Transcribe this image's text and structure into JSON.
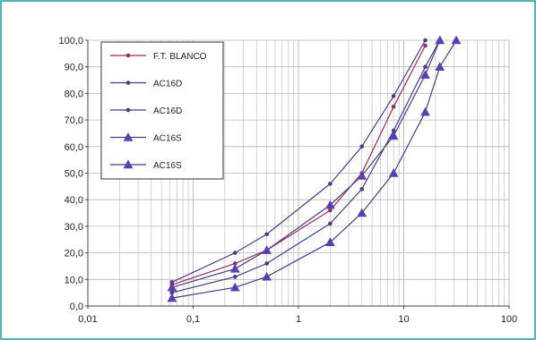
{
  "chart_data": {
    "type": "line",
    "title": "",
    "xlabel": "",
    "ylabel": "",
    "x_scale": "log",
    "xlim": [
      0.01,
      100
    ],
    "ylim": [
      0,
      100
    ],
    "x_ticks": [
      "0,01",
      "0,1",
      "1",
      "10",
      "100"
    ],
    "y_ticks": [
      "0,0",
      "10,0",
      "20,0",
      "30,0",
      "40,0",
      "50,0",
      "60,0",
      "70,0",
      "80,0",
      "90,0",
      "100,0"
    ],
    "grid": true,
    "legend_position": "top-left",
    "series": [
      {
        "name": "F.T. BLANCO",
        "color": "#9b2a55",
        "marker": "circle",
        "x": [
          0.063,
          0.25,
          0.5,
          2,
          4,
          8,
          16
        ],
        "y": [
          8,
          16,
          21,
          36,
          50,
          75,
          98
        ]
      },
      {
        "name": "AC16D",
        "color": "#4a3b88",
        "marker": "circle",
        "x": [
          0.063,
          0.25,
          0.5,
          2,
          4,
          8,
          16
        ],
        "y": [
          9,
          20,
          27,
          46,
          60,
          79,
          100
        ]
      },
      {
        "name": "AC16D",
        "color": "#4a3b88",
        "marker": "circle",
        "x": [
          0.063,
          0.25,
          0.5,
          2,
          4,
          8,
          16,
          22
        ],
        "y": [
          5,
          11,
          16,
          31,
          44,
          66,
          90,
          100
        ]
      },
      {
        "name": "AC16S",
        "color": "#4a3b88",
        "marker": "triangle",
        "x": [
          0.063,
          0.25,
          0.5,
          2,
          4,
          8,
          16,
          22
        ],
        "y": [
          7,
          14,
          21,
          38,
          49,
          64,
          87,
          100
        ]
      },
      {
        "name": "AC16S",
        "color": "#4a3b88",
        "marker": "triangle",
        "x": [
          0.063,
          0.25,
          0.5,
          2,
          4,
          8,
          16,
          22,
          31.5
        ],
        "y": [
          3,
          7,
          11,
          24,
          35,
          50,
          73,
          90,
          100
        ]
      }
    ]
  },
  "colors": {
    "frame_border": "#1a9aa6",
    "plot_bg": "#ffffff",
    "grid": "#b8b8b8",
    "marker": "#5a3fb0"
  }
}
